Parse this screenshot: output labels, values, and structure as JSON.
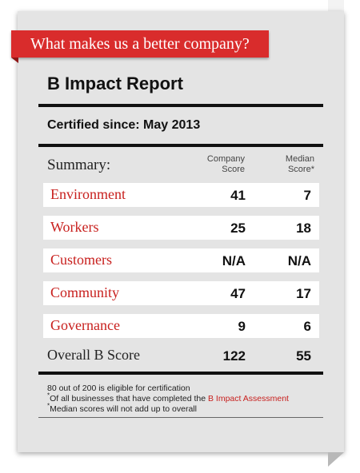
{
  "banner": {
    "text": "What makes us a better company?"
  },
  "report": {
    "title": "B Impact Report",
    "certified_label": "Certified since:",
    "certified_value": "May 2013"
  },
  "table": {
    "summary_label": "Summary:",
    "col_company_line1": "Company",
    "col_company_line2": "Score",
    "col_median_line1": "Median",
    "col_median_line2": "Score*",
    "rows": [
      {
        "name": "Environment",
        "company": "41",
        "median": "7"
      },
      {
        "name": "Workers",
        "company": "25",
        "median": "18"
      },
      {
        "name": "Customers",
        "company": "N/A",
        "median": "N/A"
      },
      {
        "name": "Community",
        "company": "47",
        "median": "17"
      },
      {
        "name": "Governance",
        "company": "9",
        "median": "6"
      }
    ],
    "overall": {
      "name": "Overall B Score",
      "company": "122",
      "median": "55"
    }
  },
  "notes": {
    "line1": "80 out of 200 is eligible for certification",
    "line2_prefix": "Of all businesses that have completed the ",
    "line2_link": "B Impact Assessment",
    "line3": "Median scores will not add up to overall",
    "asterisk": "*"
  },
  "colors": {
    "accent": "#d92c2c",
    "category_text": "#c8201e",
    "card_bg": "#e4e4e4"
  }
}
